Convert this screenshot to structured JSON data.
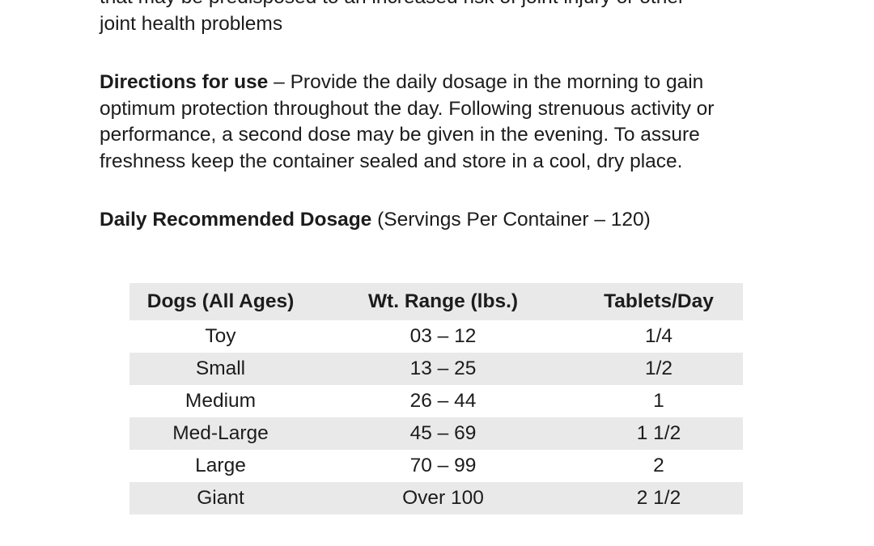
{
  "intro": {
    "line1": "that may be predisposed to an increased risk of joint injury or other",
    "line2": "joint health problems"
  },
  "directions": {
    "heading": "Directions for use",
    "dash": " – ",
    "line1_rest": "Provide the daily dosage in the morning to gain",
    "line2": "optimum protection throughout the day. Following strenuous activity or",
    "line3": "performance, a second dose may be given in the evening. To assure",
    "line4": "freshness keep the container sealed and store in a cool, dry place."
  },
  "dosage": {
    "heading": "Daily Recommended Dosage",
    "subheading": " (Servings Per Container – 120)"
  },
  "table": {
    "headers": [
      "Dogs (All Ages)",
      "Wt. Range (lbs.)",
      "Tablets/Day"
    ],
    "rows": [
      [
        "Toy",
        "03 – 12",
        "1/4"
      ],
      [
        "Small",
        "13 – 25",
        "1/2"
      ],
      [
        "Medium",
        "26 – 44",
        "1"
      ],
      [
        "Med-Large",
        "45 – 69",
        "1 1/2"
      ],
      [
        "Large",
        "70 – 99",
        "2"
      ],
      [
        "Giant",
        "Over 100",
        "2 1/2"
      ]
    ]
  },
  "colors": {
    "text": "#1c1c1c",
    "row_shade": "#e9e9e9",
    "background": "#ffffff"
  }
}
